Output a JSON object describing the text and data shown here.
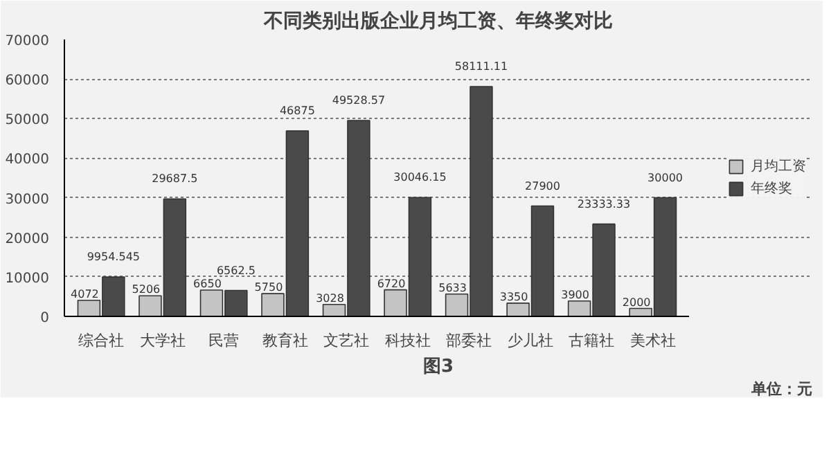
{
  "chart_data": {
    "type": "bar",
    "title": "不同类别出版企业月均工资、年终奖对比",
    "categories": [
      "综合社",
      "大学社",
      "民营",
      "教育社",
      "文艺社",
      "科技社",
      "部委社",
      "少儿社",
      "古籍社",
      "美术社"
    ],
    "series": [
      {
        "name": "月均工资",
        "color": "#c4c4c4",
        "values": [
          4072,
          5206,
          6650,
          5750,
          3028,
          6720,
          5633,
          3350,
          3900,
          2000
        ],
        "value_labels": [
          "4072",
          "5206",
          "6650",
          "5750",
          "3028",
          "6720",
          "5633",
          "3350",
          "3900",
          "2000"
        ]
      },
      {
        "name": "年终奖",
        "color": "#4a4a4a",
        "values": [
          9954.545,
          29687.5,
          6562.5,
          46875,
          49528.57,
          30046.15,
          58111.11,
          27900,
          23333.33,
          30000
        ],
        "value_labels": [
          "9954.545",
          "29687.5",
          "6562.5",
          "46875",
          "49528.57",
          "30046.15",
          "58111.11",
          "27900",
          "23333.33",
          "30000"
        ]
      }
    ],
    "ylim": [
      0,
      70000
    ],
    "yticks": [
      0,
      10000,
      20000,
      30000,
      40000,
      50000,
      60000,
      70000
    ],
    "grid": "y",
    "legend": "right",
    "annotations": [
      "图3",
      "单位：元"
    ]
  }
}
